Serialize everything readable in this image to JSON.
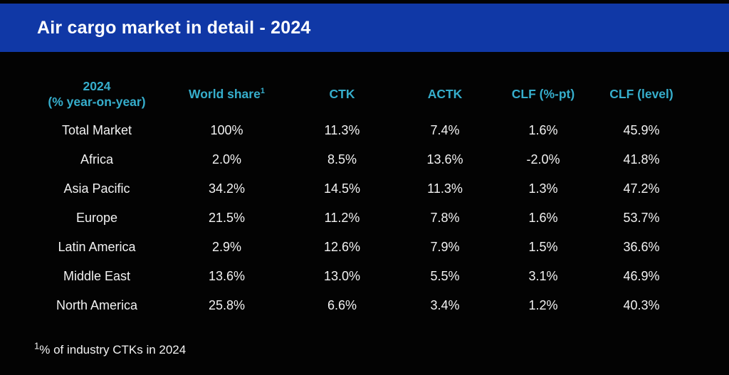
{
  "banner": {
    "title": "Air cargo market in detail - 2024",
    "bg_color": "#1038a6",
    "text_color": "#ffffff"
  },
  "table": {
    "accent_color": "#36aecc",
    "header": {
      "col1_line1": "2024",
      "col1_line2": "(% year-on-year)",
      "col2_label": "World share",
      "col2_superscript": "1",
      "col3": "CTK",
      "col4": "ACTK",
      "col5": "CLF (%-pt)",
      "col6": "CLF (level)"
    },
    "rows": [
      {
        "region": "Total Market",
        "world_share": "100%",
        "ctk": "11.3%",
        "actk": "7.4%",
        "clf_pt": "1.6%",
        "clf_level": "45.9%"
      },
      {
        "region": "Africa",
        "world_share": "2.0%",
        "ctk": "8.5%",
        "actk": "13.6%",
        "clf_pt": "-2.0%",
        "clf_level": "41.8%"
      },
      {
        "region": "Asia Pacific",
        "world_share": "34.2%",
        "ctk": "14.5%",
        "actk": "11.3%",
        "clf_pt": "1.3%",
        "clf_level": "47.2%"
      },
      {
        "region": "Europe",
        "world_share": "21.5%",
        "ctk": "11.2%",
        "actk": "7.8%",
        "clf_pt": "1.6%",
        "clf_level": "53.7%"
      },
      {
        "region": "Latin America",
        "world_share": "2.9%",
        "ctk": "12.6%",
        "actk": "7.9%",
        "clf_pt": "1.5%",
        "clf_level": "36.6%"
      },
      {
        "region": "Middle East",
        "world_share": "13.6%",
        "ctk": "13.0%",
        "actk": "5.5%",
        "clf_pt": "3.1%",
        "clf_level": "46.9%"
      },
      {
        "region": "North America",
        "world_share": "25.8%",
        "ctk": "6.6%",
        "actk": "3.4%",
        "clf_pt": "1.2%",
        "clf_level": "40.3%"
      }
    ]
  },
  "footnote": {
    "superscript": "1",
    "text": "% of industry CTKs in 2024"
  },
  "chart_data": {
    "type": "table",
    "title": "Air cargo market in detail - 2024",
    "columns": [
      "2024 (% year-on-year)",
      "World share¹",
      "CTK",
      "ACTK",
      "CLF (%-pt)",
      "CLF (level)"
    ],
    "rows": [
      [
        "Total Market",
        "100%",
        "11.3%",
        "7.4%",
        "1.6%",
        "45.9%"
      ],
      [
        "Africa",
        "2.0%",
        "8.5%",
        "13.6%",
        "-2.0%",
        "41.8%"
      ],
      [
        "Asia Pacific",
        "34.2%",
        "14.5%",
        "11.3%",
        "1.3%",
        "47.2%"
      ],
      [
        "Europe",
        "21.5%",
        "11.2%",
        "7.8%",
        "1.6%",
        "53.7%"
      ],
      [
        "Latin America",
        "2.9%",
        "12.6%",
        "7.9%",
        "1.5%",
        "36.6%"
      ],
      [
        "Middle East",
        "13.6%",
        "13.0%",
        "5.5%",
        "3.1%",
        "46.9%"
      ],
      [
        "North America",
        "25.8%",
        "6.6%",
        "3.4%",
        "1.2%",
        "40.3%"
      ]
    ],
    "footnote": "¹% of industry CTKs in 2024"
  }
}
